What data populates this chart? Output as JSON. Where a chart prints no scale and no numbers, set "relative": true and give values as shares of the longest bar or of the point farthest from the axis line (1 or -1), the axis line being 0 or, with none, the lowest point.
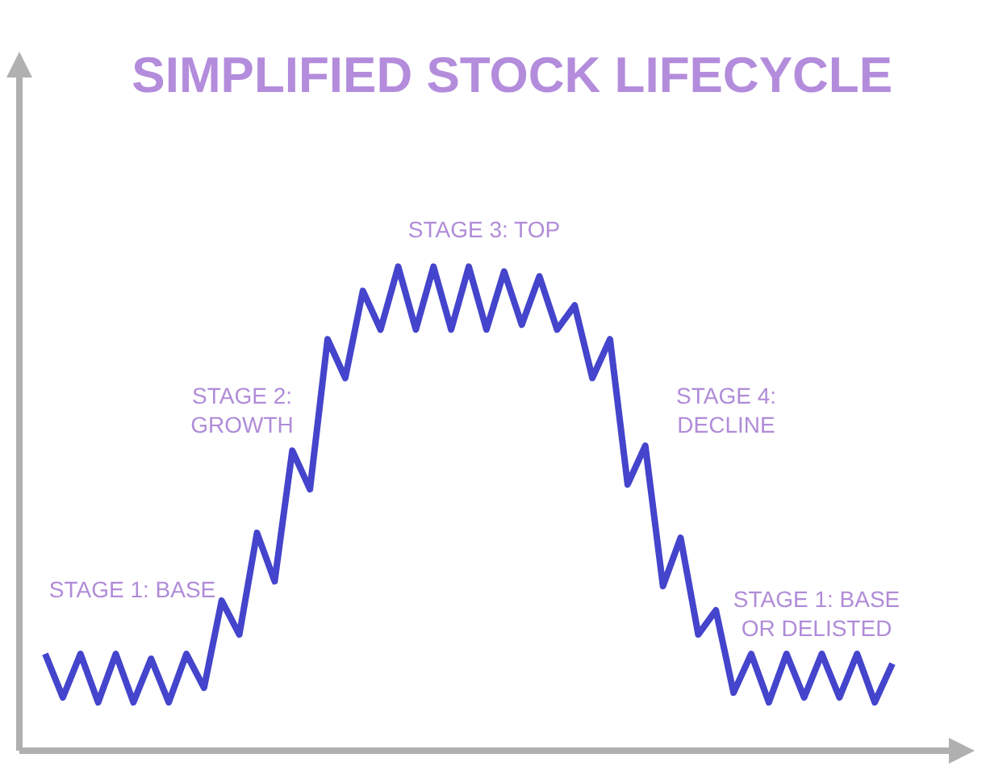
{
  "chart_data": {
    "type": "line",
    "title": "SIMPLIFIED STOCK LIFECYCLE",
    "relative": true,
    "legend": false,
    "marker": "none",
    "line_style": "solid",
    "categories": [
      null,
      null,
      null,
      null,
      null,
      null,
      null,
      null,
      null,
      null,
      null,
      null,
      null,
      null,
      null,
      null,
      null,
      null,
      null,
      null,
      null,
      null,
      null,
      null,
      null,
      null,
      null,
      null,
      null,
      null,
      null,
      null,
      null,
      null,
      null,
      null,
      null,
      null,
      null,
      null,
      null,
      null,
      null,
      null,
      null,
      null,
      null,
      null,
      null
    ],
    "series": [
      {
        "color": "#4444cc",
        "values": [
          0.2,
          0.11,
          0.2,
          0.1,
          0.2,
          0.1,
          0.19,
          0.1,
          0.2,
          0.13,
          0.31,
          0.24,
          0.45,
          0.35,
          0.62,
          0.54,
          0.85,
          0.77,
          0.95,
          0.87,
          1,
          0.87,
          1,
          0.87,
          1,
          0.87,
          0.99,
          0.88,
          0.98,
          0.87,
          0.92,
          0.77,
          0.85,
          0.55,
          0.63,
          0.34,
          0.44,
          0.24,
          0.29,
          0.12,
          0.2,
          0.1,
          0.2,
          0.11,
          0.2,
          0.11,
          0.2,
          0.1,
          0.18
        ]
      }
    ],
    "annotations": [
      "STAGE 1: BASE",
      "STAGE 2:\nGROWTH",
      "STAGE 3: TOP",
      "STAGE 4:\nDECLINE",
      "STAGE 1: BASE\nOR DELISTED"
    ]
  }
}
